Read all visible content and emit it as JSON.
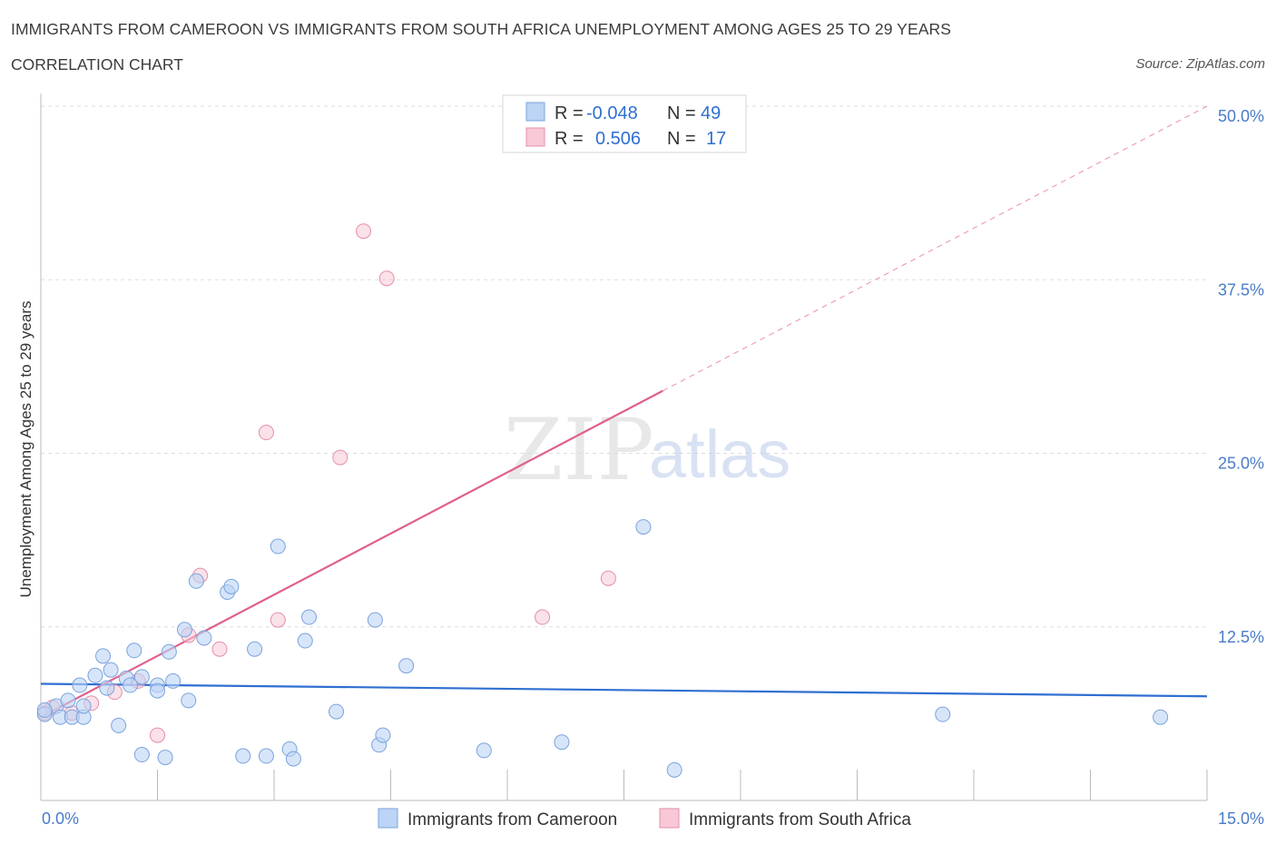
{
  "header": {
    "title": "IMMIGRANTS FROM CAMEROON VS IMMIGRANTS FROM SOUTH AFRICA UNEMPLOYMENT AMONG AGES 25 TO 29 YEARS",
    "subtitle": "CORRELATION CHART",
    "source": "Source: ZipAtlas.com"
  },
  "watermark": {
    "zip": "ZIP",
    "atlas": "atlas"
  },
  "colors": {
    "cameroon_fill": "#bcd4f5",
    "cameroon_stroke": "#7aa3dd",
    "cameroon_line": "#2f6fd1",
    "southafrica_fill": "#f8c8d6",
    "southafrica_stroke": "#e48faa",
    "southafrica_line": "#e0608a",
    "tick_label": "#4a7cc7",
    "grid": "#dedede"
  },
  "legend": {
    "rows": [
      {
        "r_label": "R =",
        "r_value": "-0.048",
        "n_label": "N =",
        "n_value": "49",
        "series": "cameroon"
      },
      {
        "r_label": "R =",
        "r_value": "0.506",
        "n_label": "N =",
        "n_value": "17",
        "series": "southafrica"
      }
    ]
  },
  "bottom_legend": [
    "Immigrants from Cameroon",
    "Immigrants from South Africa"
  ],
  "chart_data": {
    "type": "scatter",
    "xlabel": "",
    "ylabel": "Unemployment Among Ages 25 to 29 years",
    "xlim": [
      0,
      15
    ],
    "ylim": [
      0,
      50
    ],
    "x_tick_labels": [
      "0.0%",
      "15.0%"
    ],
    "y_ticks": [
      12.5,
      25.0,
      37.5,
      50.0
    ],
    "y_tick_labels": [
      "12.5%",
      "25.0%",
      "37.5%",
      "50.0%"
    ],
    "grid": true,
    "legend_position": "top-center",
    "series": [
      {
        "name": "Immigrants from Cameroon",
        "points": [
          [
            0.05,
            6.2
          ],
          [
            0.2,
            6.8
          ],
          [
            0.35,
            7.2
          ],
          [
            0.25,
            6.0
          ],
          [
            0.4,
            6.0
          ],
          [
            0.55,
            6.0
          ],
          [
            0.5,
            8.3
          ],
          [
            0.55,
            6.8
          ],
          [
            0.7,
            9.0
          ],
          [
            0.8,
            10.4
          ],
          [
            0.9,
            9.4
          ],
          [
            0.85,
            8.1
          ],
          [
            1.1,
            8.8
          ],
          [
            1.15,
            8.3
          ],
          [
            1.2,
            10.8
          ],
          [
            1.3,
            8.9
          ],
          [
            1.0,
            5.4
          ],
          [
            1.3,
            3.3
          ],
          [
            1.5,
            8.3
          ],
          [
            1.5,
            7.9
          ],
          [
            1.6,
            3.1
          ],
          [
            1.65,
            10.7
          ],
          [
            1.7,
            8.6
          ],
          [
            1.85,
            12.3
          ],
          [
            1.9,
            7.2
          ],
          [
            2.0,
            15.8
          ],
          [
            2.1,
            11.7
          ],
          [
            2.4,
            15.0
          ],
          [
            2.45,
            15.4
          ],
          [
            2.6,
            3.2
          ],
          [
            2.75,
            10.9
          ],
          [
            2.9,
            3.2
          ],
          [
            3.05,
            18.3
          ],
          [
            3.2,
            3.7
          ],
          [
            3.25,
            3.0
          ],
          [
            3.4,
            11.5
          ],
          [
            3.45,
            13.2
          ],
          [
            3.8,
            6.4
          ],
          [
            4.3,
            13.0
          ],
          [
            4.35,
            4.0
          ],
          [
            4.4,
            4.7
          ],
          [
            4.7,
            9.7
          ],
          [
            5.7,
            3.6
          ],
          [
            6.7,
            4.2
          ],
          [
            7.75,
            19.7
          ],
          [
            8.15,
            2.2
          ],
          [
            11.6,
            6.2
          ],
          [
            14.4,
            6.0
          ],
          [
            0.05,
            6.5
          ]
        ],
        "trend": {
          "x": [
            0,
            15
          ],
          "y": [
            8.4,
            7.5
          ]
        }
      },
      {
        "name": "Immigrants from South Africa",
        "points": [
          [
            0.05,
            6.3
          ],
          [
            0.15,
            6.7
          ],
          [
            0.4,
            6.3
          ],
          [
            0.65,
            7.0
          ],
          [
            0.95,
            7.8
          ],
          [
            1.25,
            8.6
          ],
          [
            1.5,
            4.7
          ],
          [
            1.9,
            11.9
          ],
          [
            2.05,
            16.2
          ],
          [
            2.3,
            10.9
          ],
          [
            2.9,
            26.5
          ],
          [
            3.05,
            13.0
          ],
          [
            3.85,
            24.7
          ],
          [
            4.15,
            41.0
          ],
          [
            4.45,
            37.6
          ],
          [
            6.45,
            13.2
          ],
          [
            7.3,
            16.0
          ]
        ],
        "trend_solid": {
          "x": [
            0,
            8.0
          ],
          "y": [
            6.0,
            29.5
          ]
        },
        "trend_dashed": {
          "x": [
            8.0,
            15
          ],
          "y": [
            29.5,
            50.0
          ]
        }
      }
    ]
  }
}
